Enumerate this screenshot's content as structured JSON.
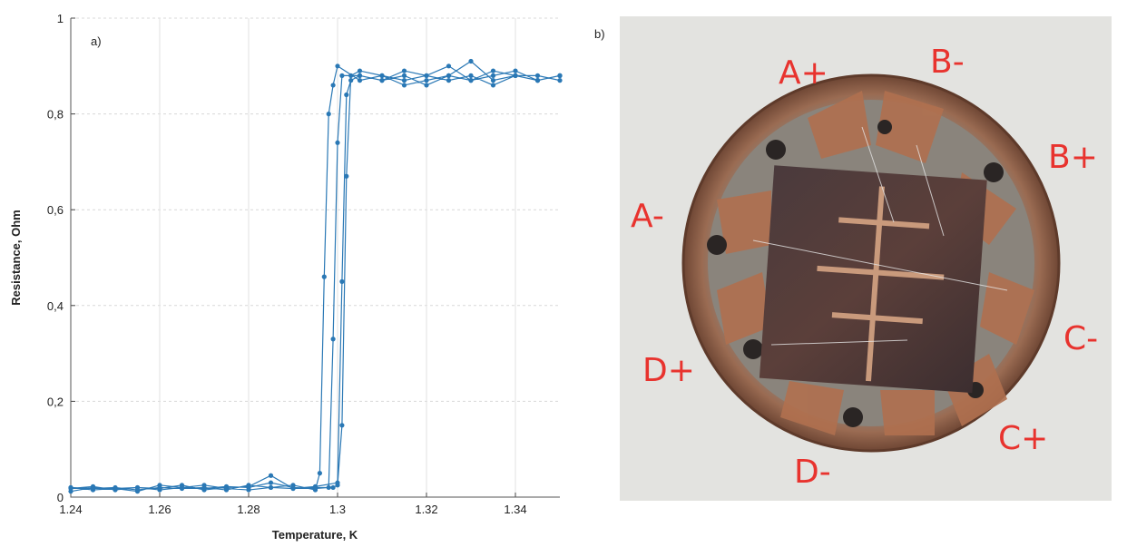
{
  "chart_data": {
    "type": "line",
    "panel_label": "a)",
    "x_label": "Temperature, K",
    "y_label": "Resistance, Ohm",
    "xlim": [
      1.24,
      1.35
    ],
    "xticks": [
      1.24,
      1.26,
      1.28,
      1.3,
      1.32,
      1.34
    ],
    "ylim": [
      0,
      1
    ],
    "yticks": [
      0,
      {
        "value": 0.2,
        "label": "0,2"
      },
      {
        "value": 0.4,
        "label": "0,4"
      },
      {
        "value": 0.6,
        "label": "0,6"
      },
      {
        "value": 0.8,
        "label": "0,8"
      },
      1
    ],
    "grid": true,
    "x": [
      1.24,
      1.245,
      1.25,
      1.255,
      1.26,
      1.265,
      1.27,
      1.275,
      1.28,
      1.285,
      1.29,
      1.295,
      1.298,
      1.299,
      1.3,
      1.301,
      1.305,
      1.31,
      1.315,
      1.32,
      1.325,
      1.33,
      1.335,
      1.34,
      1.345,
      1.35,
      null,
      1.24,
      1.245,
      1.25,
      1.255,
      1.26,
      1.265,
      1.27,
      1.275,
      1.28,
      1.285,
      1.29,
      1.295,
      1.299,
      1.3,
      1.301,
      1.302,
      1.303,
      1.305,
      1.31,
      1.315,
      1.32,
      1.325,
      1.33,
      1.335,
      1.34,
      1.345,
      1.35,
      null,
      1.24,
      1.245,
      1.25,
      1.255,
      1.26,
      1.265,
      1.27,
      1.275,
      1.28,
      1.285,
      1.29,
      1.295,
      1.296,
      1.297,
      1.298,
      1.299,
      1.3,
      1.305,
      1.31,
      1.315,
      1.32,
      1.325,
      1.33,
      1.335,
      1.34,
      1.345,
      1.35,
      null,
      1.24,
      1.245,
      1.25,
      1.255,
      1.26,
      1.265,
      1.27,
      1.275,
      1.28,
      1.285,
      1.29,
      1.295,
      1.3,
      1.301,
      1.302,
      1.303,
      1.305,
      1.31,
      1.315,
      1.32,
      1.325,
      1.33,
      1.335,
      1.34,
      1.345,
      1.35
    ],
    "series": [
      {
        "color": "#2a78b5",
        "values": [
          0.02,
          0.015,
          0.018,
          0.012,
          0.025,
          0.02,
          0.018,
          0.022,
          0.02,
          0.03,
          0.02,
          0.018,
          0.02,
          0.33,
          0.74,
          0.88,
          0.88,
          0.87,
          0.88,
          0.86,
          0.88,
          0.87,
          0.89,
          0.88,
          0.87,
          0.88,
          null,
          0.018,
          0.022,
          0.015,
          0.02,
          0.018,
          0.025,
          0.015,
          0.02,
          0.022,
          0.045,
          0.018,
          0.02,
          0.02,
          0.025,
          0.15,
          0.67,
          0.88,
          0.89,
          0.88,
          0.87,
          0.88,
          0.9,
          0.87,
          0.88,
          0.89,
          0.87,
          0.88,
          null,
          0.012,
          0.02,
          0.018,
          0.02,
          0.015,
          0.02,
          0.025,
          0.018,
          0.015,
          0.02,
          0.025,
          0.015,
          0.05,
          0.46,
          0.8,
          0.86,
          0.9,
          0.87,
          0.88,
          0.86,
          0.87,
          0.88,
          0.91,
          0.87,
          0.88,
          0.88,
          0.87,
          null,
          0.02,
          0.018,
          0.02,
          0.015,
          0.02,
          0.018,
          0.02,
          0.015,
          0.025,
          0.02,
          0.018,
          0.022,
          0.03,
          0.45,
          0.84,
          0.87,
          0.88,
          0.87,
          0.89,
          0.88,
          0.87,
          0.88,
          0.86,
          0.88,
          0.87,
          0.88
        ]
      }
    ]
  },
  "photo": {
    "panel_label": "b)",
    "labels": [
      "A+",
      "B-",
      "B+",
      "A-",
      "C-",
      "D+",
      "C+",
      "D-"
    ]
  }
}
